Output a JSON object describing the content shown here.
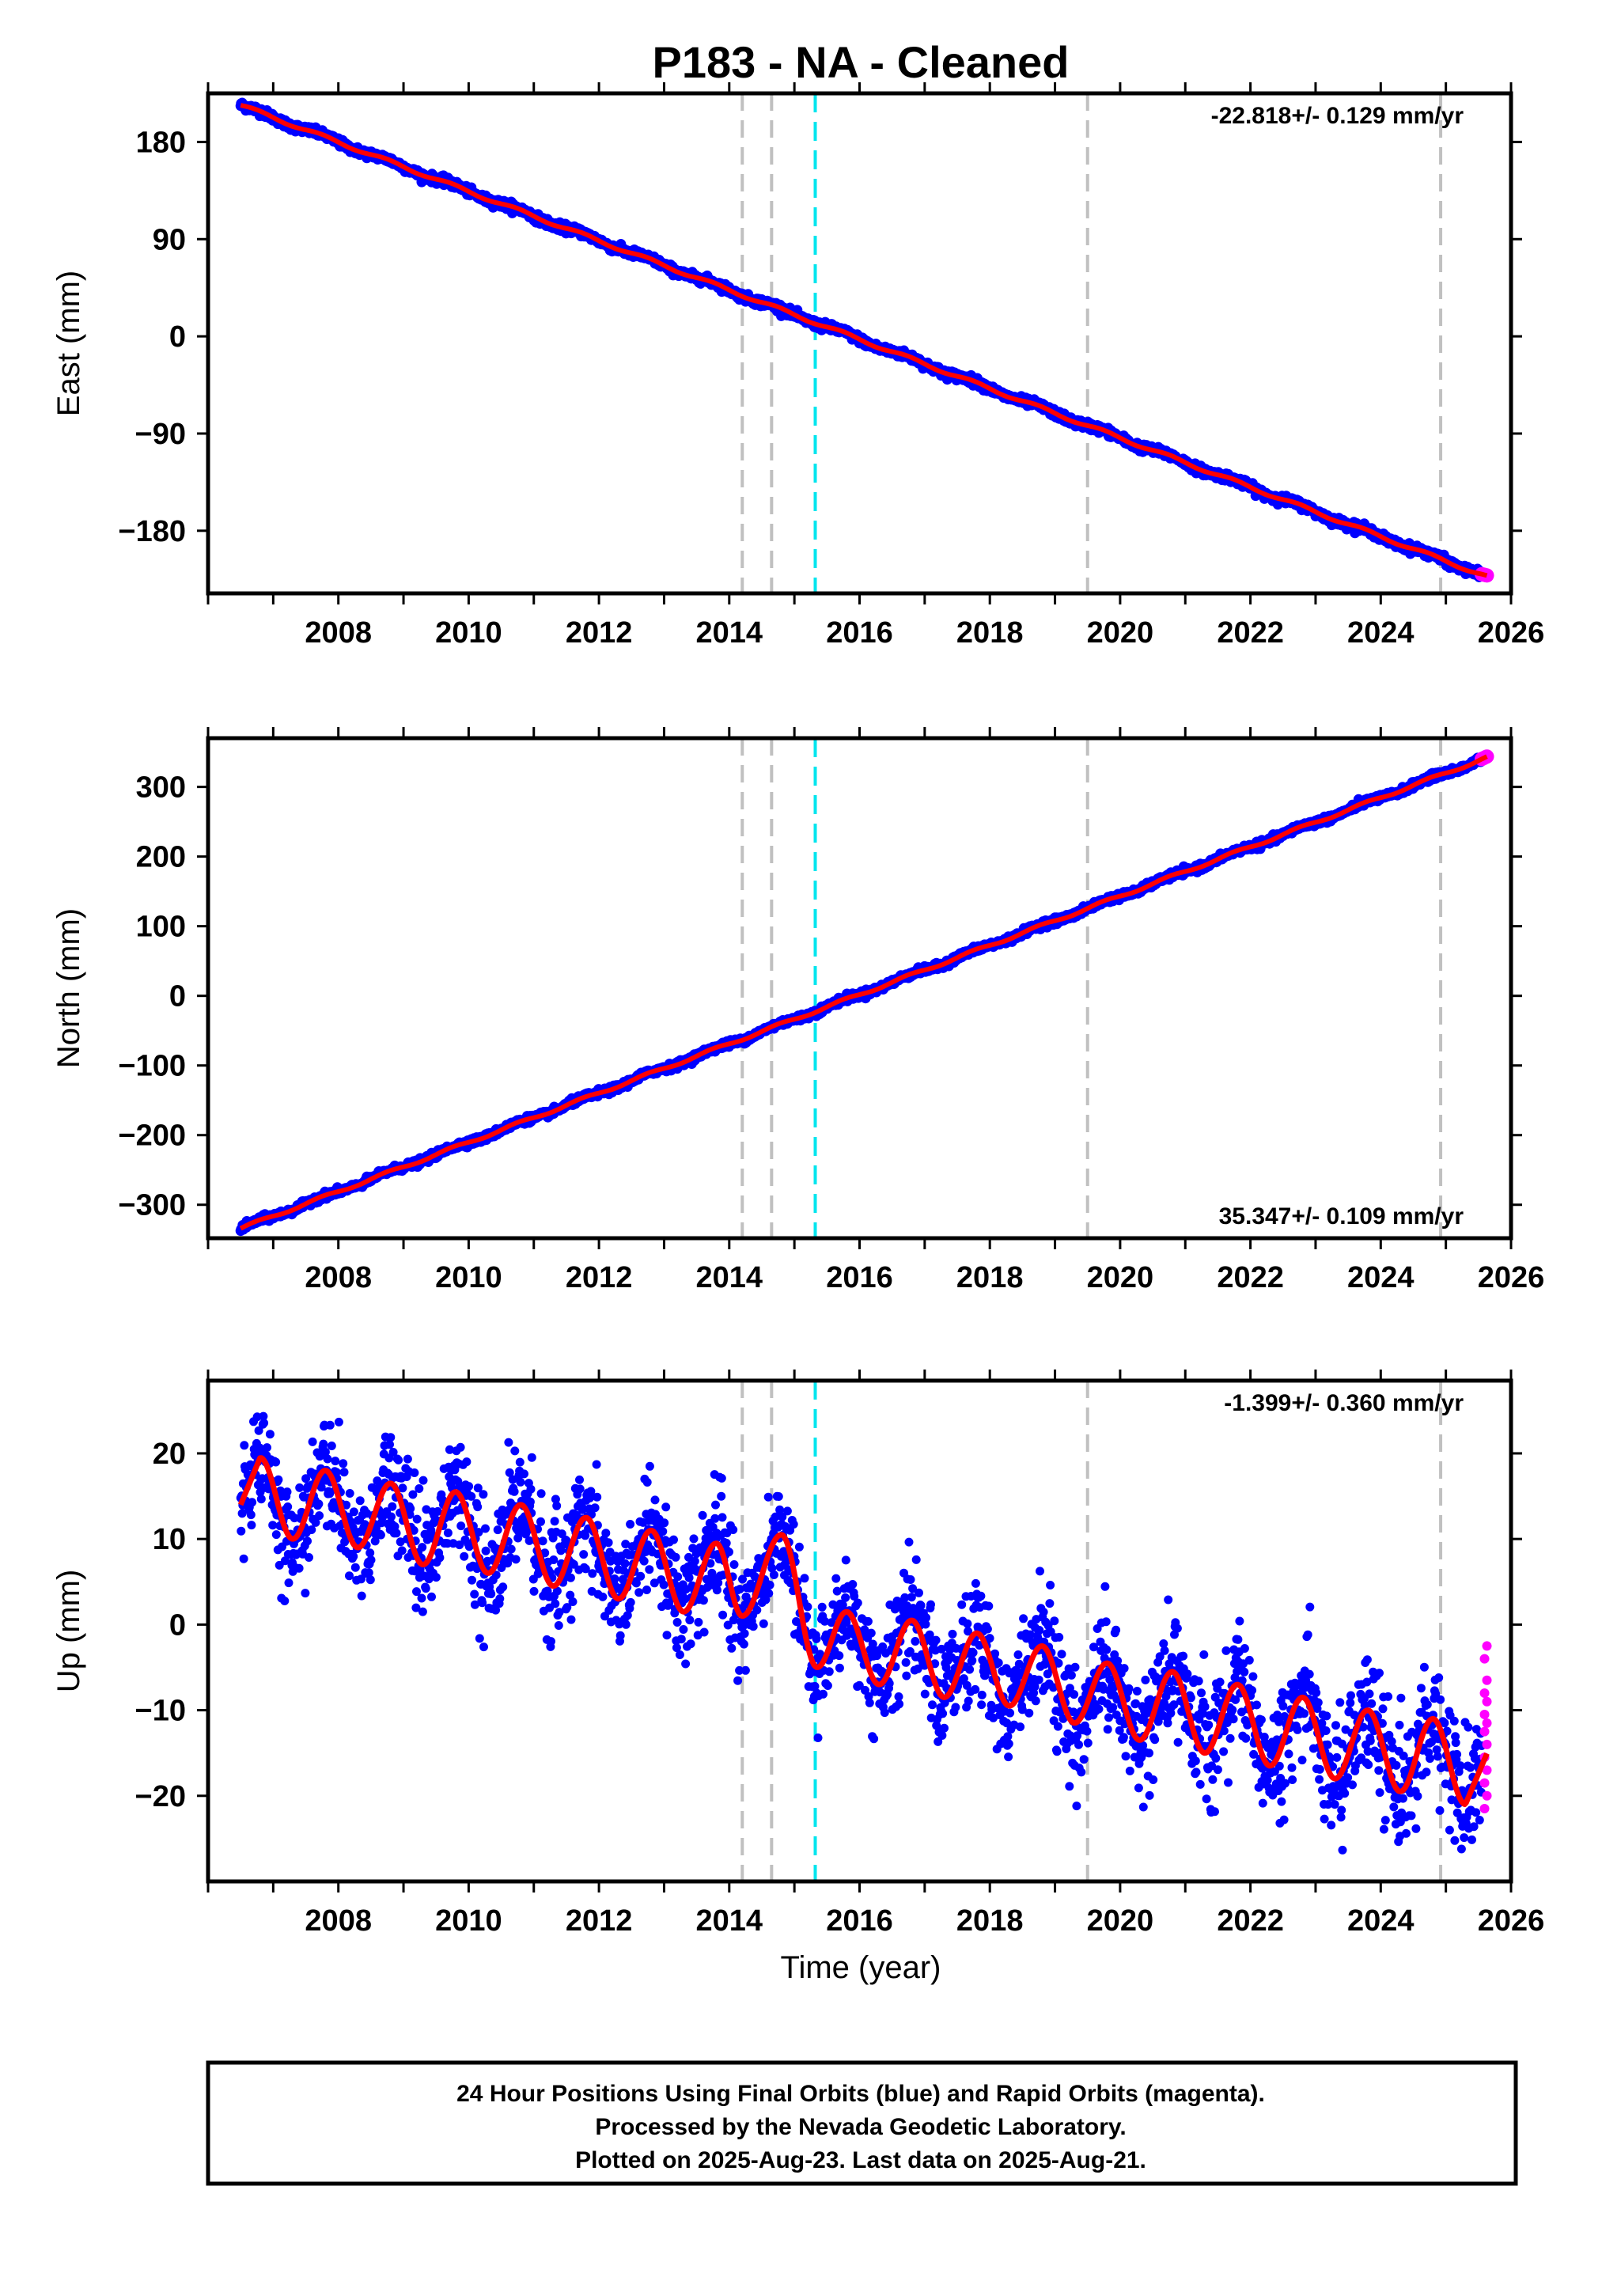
{
  "title": "P183  - NA - Cleaned",
  "xlabel": "Time (year)",
  "footer": {
    "line1": "24 Hour Positions Using Final Orbits (blue) and Rapid Orbits (magenta).",
    "line2": "Processed by the Nevada Geodetic Laboratory.",
    "line3": "Plotted on 2025-Aug-23. Last data on 2025-Aug-21."
  },
  "colors": {
    "final_orbits": "#0000ff",
    "rapid_orbits": "#ff00ff",
    "model": "#ff0000",
    "event_line": "#c0c0c0",
    "antenna_line": "#00e5ee"
  },
  "chart_data": [
    {
      "type": "scatter",
      "ylabel": "East (mm)",
      "rate": "-22.818+/- 0.129 mm/yr",
      "xlim": [
        2006.0,
        2026.0
      ],
      "ylim": [
        -238,
        225
      ],
      "x_ticks": [
        "2008",
        "2010",
        "2012",
        "2014",
        "2016",
        "2018",
        "2020",
        "2022",
        "2024",
        "2026"
      ],
      "y_ticks": [
        "180",
        "90",
        "0",
        "−90",
        "−180"
      ],
      "y_tick_values": [
        180,
        90,
        0,
        -90,
        -180
      ],
      "grid": false,
      "event_lines": [
        2014.2,
        2014.65,
        2019.5,
        2024.92
      ],
      "antenna_lines": [
        2015.32
      ],
      "model": {
        "start_year": 2006.5,
        "end_year": 2025.63,
        "start_value": 214,
        "rate_mm_yr": -22.818,
        "annual_amplitude": 1.5
      },
      "series": [
        {
          "name": "Final Orbits (blue)",
          "x_range": [
            2006.5,
            2025.55
          ],
          "scatter_mm": 1.8
        },
        {
          "name": "Rapid Orbits (magenta)",
          "x_range": [
            2025.55,
            2025.63
          ],
          "scatter_mm": 1.5
        }
      ]
    },
    {
      "type": "scatter",
      "ylabel": "North (mm)",
      "rate": "35.347+/- 0.109 mm/yr",
      "xlim": [
        2006.0,
        2026.0
      ],
      "ylim": [
        -348,
        370
      ],
      "x_ticks": [
        "2008",
        "2010",
        "2012",
        "2014",
        "2016",
        "2018",
        "2020",
        "2022",
        "2024",
        "2026"
      ],
      "y_ticks": [
        "300",
        "200",
        "100",
        "0",
        "−100",
        "−200",
        "−300"
      ],
      "y_tick_values": [
        300,
        200,
        100,
        0,
        -100,
        -200,
        -300
      ],
      "grid": false,
      "event_lines": [
        2014.2,
        2014.65,
        2019.5,
        2024.92
      ],
      "antenna_lines": [
        2015.32
      ],
      "model": {
        "start_year": 2006.5,
        "end_year": 2025.63,
        "start_value": -334,
        "rate_mm_yr": 35.347,
        "annual_amplitude": 2
      },
      "series": [
        {
          "name": "Final Orbits (blue)",
          "x_range": [
            2006.5,
            2025.55
          ],
          "scatter_mm": 2.2
        },
        {
          "name": "Rapid Orbits (magenta)",
          "x_range": [
            2025.55,
            2025.63
          ],
          "scatter_mm": 1.5
        }
      ]
    },
    {
      "type": "scatter",
      "ylabel": "Up (mm)",
      "rate": "-1.399+/- 0.360 mm/yr",
      "xlim": [
        2006.0,
        2026.0
      ],
      "ylim": [
        -30,
        28.5
      ],
      "x_ticks": [
        "2008",
        "2010",
        "2012",
        "2014",
        "2016",
        "2018",
        "2020",
        "2022",
        "2024",
        "2026"
      ],
      "y_ticks": [
        "20",
        "10",
        "0",
        "−10",
        "−20"
      ],
      "y_tick_values": [
        20,
        10,
        0,
        -10,
        -20
      ],
      "grid": false,
      "event_lines": [
        2014.2,
        2014.65,
        2019.5,
        2024.92
      ],
      "antenna_lines": [
        2015.32
      ],
      "model": {
        "start_year": 2006.5,
        "end_year": 2025.63,
        "annual_amplitude": 4.6,
        "peaks": [
          [
            2006.8,
            19.5
          ],
          [
            2007.8,
            18
          ],
          [
            2008.8,
            16.5
          ],
          [
            2009.8,
            15.5
          ],
          [
            2010.8,
            14
          ],
          [
            2011.8,
            12.5
          ],
          [
            2012.8,
            11
          ],
          [
            2013.8,
            9.5
          ],
          [
            2014.8,
            10.5
          ],
          [
            2015.8,
            1.5
          ],
          [
            2016.8,
            0.5
          ],
          [
            2017.8,
            -1
          ],
          [
            2018.8,
            -2.5
          ],
          [
            2019.8,
            -4.5
          ],
          [
            2020.8,
            -5.5
          ],
          [
            2021.8,
            -7
          ],
          [
            2022.8,
            -8.5
          ],
          [
            2023.8,
            -10
          ],
          [
            2024.8,
            -11
          ]
        ],
        "troughs": [
          [
            2007.3,
            10
          ],
          [
            2008.3,
            9
          ],
          [
            2009.3,
            7
          ],
          [
            2010.3,
            6
          ],
          [
            2011.3,
            4.5
          ],
          [
            2012.3,
            3
          ],
          [
            2013.3,
            1.5
          ],
          [
            2014.2,
            1
          ],
          [
            2015.35,
            -5
          ],
          [
            2016.3,
            -7
          ],
          [
            2017.3,
            -8.5
          ],
          [
            2018.3,
            -9.5
          ],
          [
            2019.3,
            -11.5
          ],
          [
            2020.3,
            -13.5
          ],
          [
            2021.3,
            -15
          ],
          [
            2022.3,
            -16.5
          ],
          [
            2023.3,
            -18
          ],
          [
            2024.3,
            -19.5
          ],
          [
            2025.3,
            -21
          ]
        ]
      },
      "series": [
        {
          "name": "Final Orbits (blue)",
          "x_range": [
            2006.5,
            2025.55
          ],
          "scatter_mm": 3.2
        },
        {
          "name": "Rapid Orbits (magenta)",
          "x_range": [
            2025.55,
            2025.63
          ],
          "y_values": [
            -2.5,
            -4,
            -6.5,
            -8,
            -9,
            -10.5,
            -11.5,
            -12.5,
            -14,
            -15.5,
            -17,
            -18.5,
            -20,
            -21.5
          ]
        }
      ]
    }
  ]
}
